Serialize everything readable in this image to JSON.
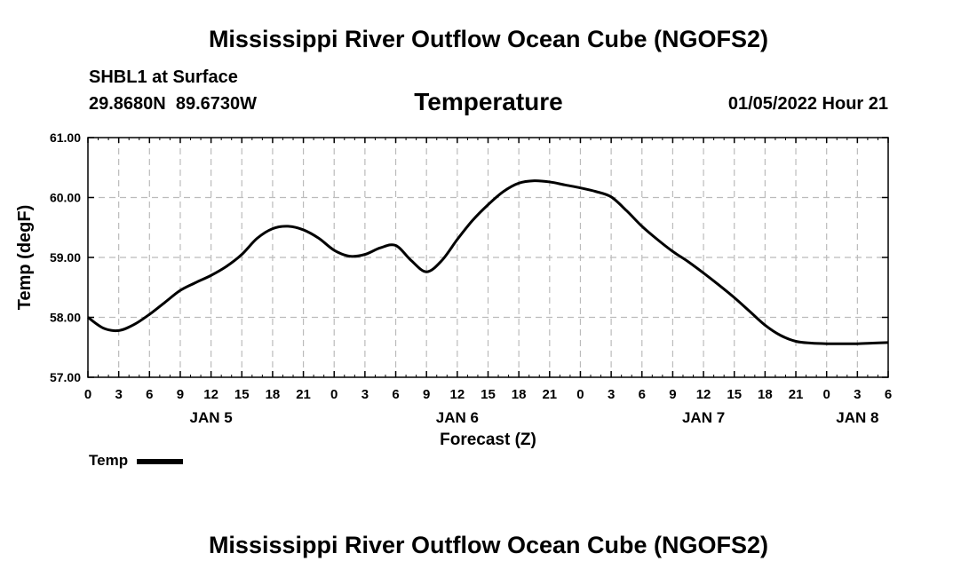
{
  "header": {
    "title": "Mississippi River Outflow Ocean Cube (NGOFS2)",
    "station_name": "SHBL1 at Surface",
    "coords": "29.8680N  89.6730W",
    "subtitle": "Temperature",
    "timestamp": "01/05/2022 Hour 21"
  },
  "footer": {
    "title": "Mississippi River Outflow Ocean Cube (NGOFS2)"
  },
  "legend": {
    "label": "Temp"
  },
  "chart_data": {
    "type": "line",
    "title": "Temperature",
    "xlabel": "Forecast (Z)",
    "ylabel": "Temp (degF)",
    "xlim": [
      0,
      78
    ],
    "ylim": [
      57.0,
      61.0
    ],
    "grid": true,
    "x_tick_labels": [
      "0",
      "3",
      "6",
      "9",
      "12",
      "15",
      "18",
      "21",
      "0",
      "3",
      "6",
      "9",
      "12",
      "15",
      "18",
      "21",
      "0",
      "3",
      "6",
      "9",
      "12",
      "15",
      "18",
      "21",
      "0",
      "3",
      "6"
    ],
    "y_ticks": [
      57.0,
      58.0,
      59.0,
      60.0,
      61.0
    ],
    "y_tick_labels": [
      "57.00",
      "58.00",
      "59.00",
      "60.00",
      "61.00"
    ],
    "day_labels": [
      {
        "x": 12,
        "label": "JAN 5"
      },
      {
        "x": 36,
        "label": "JAN 6"
      },
      {
        "x": 60,
        "label": "JAN 7"
      },
      {
        "x": 75,
        "label": "JAN 8"
      }
    ],
    "series": [
      {
        "name": "Temp",
        "color": "#000000",
        "x": [
          0,
          1.5,
          3,
          4.5,
          6,
          7.5,
          9,
          10.5,
          12,
          13.5,
          15,
          16.5,
          18,
          19.5,
          21,
          22.5,
          24,
          25.5,
          27,
          28.5,
          30,
          31.5,
          33,
          34.5,
          36,
          37.5,
          39,
          40.5,
          42,
          43.5,
          45,
          46.5,
          48,
          49.5,
          51,
          52.5,
          54,
          55.5,
          57,
          58.5,
          60,
          61.5,
          63,
          64.5,
          66,
          67.5,
          69,
          70.5,
          72,
          73.5,
          75,
          76.5,
          78
        ],
        "values": [
          58.0,
          57.82,
          57.78,
          57.88,
          58.05,
          58.25,
          58.45,
          58.58,
          58.7,
          58.85,
          59.05,
          59.32,
          59.48,
          59.52,
          59.46,
          59.32,
          59.12,
          59.02,
          59.05,
          59.16,
          59.2,
          58.95,
          58.76,
          58.95,
          59.3,
          59.62,
          59.88,
          60.1,
          60.24,
          60.28,
          60.26,
          60.21,
          60.16,
          60.1,
          60.01,
          59.78,
          59.52,
          59.3,
          59.1,
          58.93,
          58.74,
          58.54,
          58.33,
          58.1,
          57.87,
          57.7,
          57.6,
          57.57,
          57.56,
          57.56,
          57.56,
          57.57,
          57.58
        ]
      }
    ]
  }
}
